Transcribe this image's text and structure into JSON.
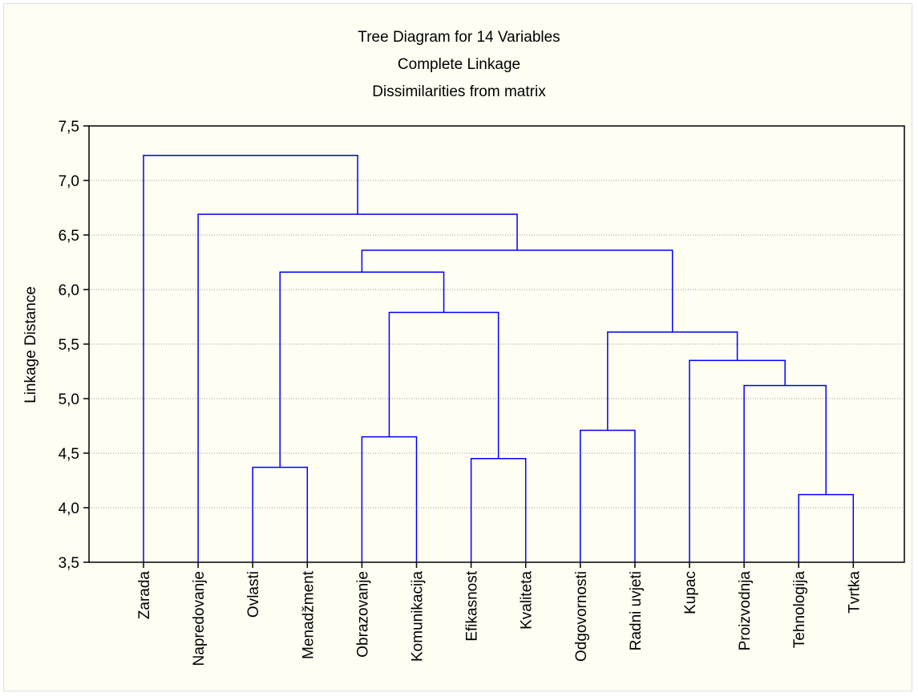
{
  "chart_data": {
    "type": "dendrogram",
    "title": "Tree Diagram for 14  Variables",
    "subtitle": [
      "Complete Linkage",
      "Dissimilarities from matrix"
    ],
    "ylabel": "Linkage Distance",
    "xlabel": "",
    "ylim": [
      3.5,
      7.5
    ],
    "yticks": [
      "3,5",
      "4,0",
      "4,5",
      "5,0",
      "5,5",
      "6,0",
      "6,5",
      "7,0",
      "7,5"
    ],
    "grid": true,
    "leaves": [
      "Zarada",
      "Napredovanje",
      "Ovlasti",
      "Menadžment",
      "Obrazovanje",
      "Komunikacija",
      "Efikasnost",
      "Kvaliteta",
      "Odgovornosti",
      "Radni uvjeti",
      "Kupac",
      "Proizvodnja",
      "Tehnologija",
      "Tvrtka"
    ],
    "merges": [
      {
        "left": "Tehnologija",
        "right": "Tvrtka",
        "distance": 4.12
      },
      {
        "left": "Ovlasti",
        "right": "Menadžment",
        "distance": 4.37
      },
      {
        "left": "Efikasnost",
        "right": "Kvaliteta",
        "distance": 4.45
      },
      {
        "left": "Obrazovanje",
        "right": "Komunikacija",
        "distance": 4.65
      },
      {
        "left": "Odgovornosti",
        "right": "Radni uvjeti",
        "distance": 4.71
      },
      {
        "left": "Proizvodnja",
        "right": "Tehnologija+Tvrtka",
        "distance": 5.12
      },
      {
        "left": "Kupac",
        "right": "Proizvodnja+Tehnologija+Tvrtka",
        "distance": 5.35
      },
      {
        "left": "Odgovornosti+Radni uvjeti",
        "right": "Kupac+Proizvodnja+Tehnologija+Tvrtka",
        "distance": 5.61
      },
      {
        "left": "Obrazovanje+Komunikacija",
        "right": "Efikasnost+Kvaliteta",
        "distance": 5.79
      },
      {
        "left": "Ovlasti+Menadžment",
        "right": "Obrazovanje..Kvaliteta",
        "distance": 6.16
      },
      {
        "left": "Ovlasti..Kvaliteta",
        "right": "Odgovornosti..Tvrtka",
        "distance": 6.36
      },
      {
        "left": "Napredovanje",
        "right": "Ovlasti..Tvrtka",
        "distance": 6.69
      },
      {
        "left": "Zarada",
        "right": "Napredovanje..Tvrtka",
        "distance": 7.23
      }
    ],
    "colors": {
      "links": "#0000ff",
      "grid": "#999999",
      "axis": "#000000",
      "background": "#fffef3"
    }
  }
}
